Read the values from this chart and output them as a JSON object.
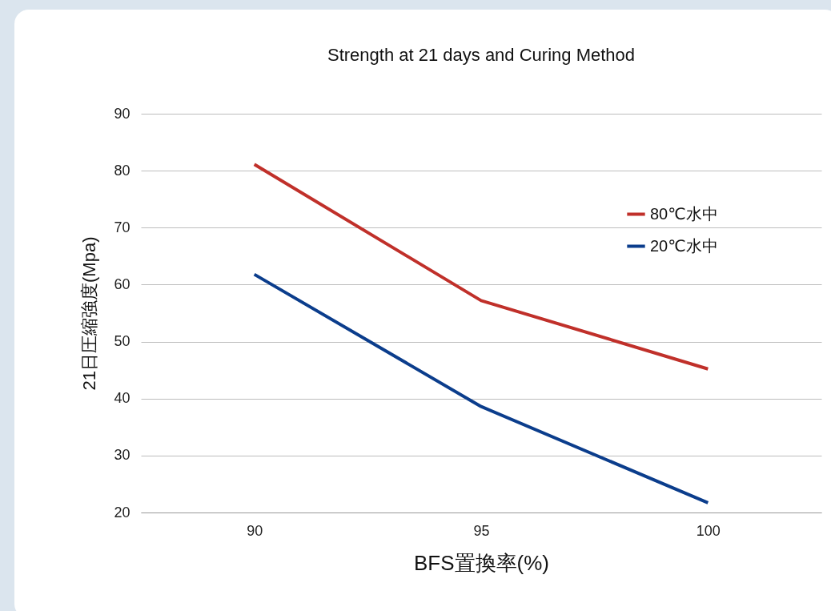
{
  "chart_data": {
    "type": "line",
    "title": "Strength at 21 days and Curing Method",
    "xlabel": "BFS置換率(%)",
    "ylabel": "21日圧縮強度(Mpa)",
    "categories": [
      "90",
      "95",
      "100"
    ],
    "series": [
      {
        "name": "80℃水中",
        "color": "#c0302a",
        "values": [
          81.1,
          57.2,
          45.2
        ]
      },
      {
        "name": "20℃水中",
        "color": "#0b3d8c",
        "values": [
          61.8,
          38.6,
          21.7
        ]
      }
    ],
    "ylim": [
      20,
      90
    ],
    "yticks": [
      20,
      30,
      40,
      50,
      60,
      70,
      80,
      90
    ],
    "grid": "y",
    "legend": "right",
    "marker": "none",
    "line_style": "solid"
  }
}
